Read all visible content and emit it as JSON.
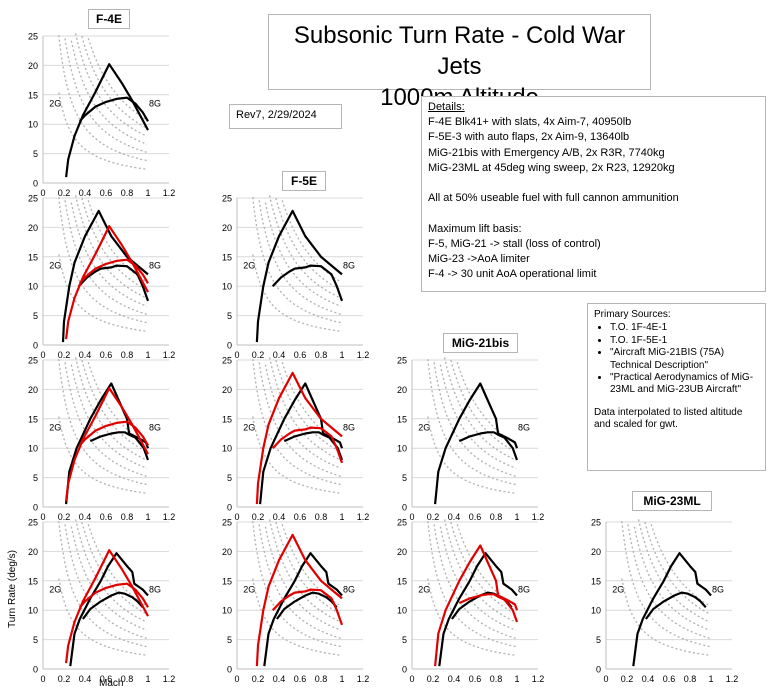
{
  "title_line1": "Subsonic Turn Rate - Cold War Jets",
  "title_line2": "1000m Altitude",
  "revision": "Rev7, 2/29/2024",
  "details": {
    "heading": "Details:",
    "lines": [
      "F-4E Blk41+ with slats, 4x Aim-7, 40950lb",
      "F-5E-3 with auto flaps, 2x Aim-9, 13640lb",
      "MiG-21bis with Emergency A/B, 2x R3R, 7740kg",
      "MiG-23ML at 45deg wing sweep, 2x R23, 12920kg",
      "",
      "All at 50% useable fuel with full cannon ammunition",
      "",
      "Maximum lift basis:",
      "F-5, MiG-21 -> stall (loss of control)",
      "MiG-23 ->AoA limiter",
      "F-4 -> 30 unit AoA operational limit"
    ]
  },
  "sources": {
    "heading": "Primary Sources:",
    "items": [
      "T.O. 1F-4E-1",
      "T.O. 1F-5E-1",
      "\"Aircraft MiG-21BIS (75A) Technical Description\"",
      "\"Practical Aerodynamics of MiG-23ML and MiG-23UB Aircraft\""
    ],
    "note": "Data interpolated to listed altitude and scaled for gwt."
  },
  "axis_labels": {
    "y": "Turn Rate (deg/s)",
    "x": "Mach"
  },
  "g_labels": {
    "low": "2G",
    "high": "8G"
  },
  "chart_titles": {
    "f4e": "F-4E",
    "f5e": "F-5E",
    "mig21": "MiG-21bis",
    "mig23": "MiG-23ML"
  },
  "colors": {
    "row_aircraft": "#000000",
    "col_aircraft": "#e00000",
    "g_lines": "#b0b0b0",
    "grid": "#d9d9d9"
  },
  "chart_data": {
    "type": "line",
    "xlabel": "Mach",
    "ylabel": "Turn Rate (deg/s)",
    "xlim": [
      0,
      1.2
    ],
    "ylim": [
      0,
      25
    ],
    "xticks": [
      "0",
      "0.2",
      "0.4",
      "0.6",
      "0.8",
      "1",
      "1.2"
    ],
    "yticks": [
      "0",
      "5",
      "10",
      "15",
      "20",
      "25"
    ],
    "aircraft": {
      "F-4E": {
        "max": [
          [
            0.22,
            1
          ],
          [
            0.24,
            4
          ],
          [
            0.3,
            8
          ],
          [
            0.38,
            11.5
          ],
          [
            0.5,
            15.5
          ],
          [
            0.63,
            20.2
          ],
          [
            0.75,
            17
          ],
          [
            0.85,
            14
          ],
          [
            1.0,
            9
          ]
        ],
        "sustained": [
          [
            0.35,
            10.5
          ],
          [
            0.4,
            11.5
          ],
          [
            0.5,
            13
          ],
          [
            0.6,
            13.8
          ],
          [
            0.7,
            14.3
          ],
          [
            0.8,
            14.5
          ],
          [
            0.88,
            13.5
          ],
          [
            0.95,
            12
          ],
          [
            1.0,
            10.5
          ]
        ]
      },
      "F-5E": {
        "max": [
          [
            0.19,
            0.5
          ],
          [
            0.2,
            4
          ],
          [
            0.25,
            10
          ],
          [
            0.3,
            14
          ],
          [
            0.4,
            18.5
          ],
          [
            0.53,
            22.8
          ],
          [
            0.65,
            18.5
          ],
          [
            0.8,
            15
          ],
          [
            0.9,
            13.5
          ],
          [
            1.0,
            12
          ]
        ],
        "sustained": [
          [
            0.34,
            10
          ],
          [
            0.42,
            11.5
          ],
          [
            0.5,
            12.5
          ],
          [
            0.55,
            13
          ],
          [
            0.65,
            13.2
          ],
          [
            0.7,
            13.5
          ],
          [
            0.8,
            13.4
          ],
          [
            0.9,
            12
          ],
          [
            0.95,
            10
          ],
          [
            1.0,
            7.5
          ]
        ]
      },
      "MiG-21bis": {
        "max": [
          [
            0.22,
            0.5
          ],
          [
            0.25,
            6
          ],
          [
            0.32,
            10
          ],
          [
            0.45,
            15
          ],
          [
            0.55,
            18.2
          ],
          [
            0.65,
            21
          ],
          [
            0.72,
            18.2
          ],
          [
            0.8,
            15
          ],
          [
            0.82,
            12.5
          ],
          [
            0.9,
            11.8
          ],
          [
            0.98,
            11
          ],
          [
            1.0,
            10
          ]
        ],
        "sustained": [
          [
            0.45,
            11.2
          ],
          [
            0.55,
            12
          ],
          [
            0.65,
            12.5
          ],
          [
            0.72,
            12.7
          ],
          [
            0.78,
            12.7
          ],
          [
            0.82,
            12.3
          ],
          [
            0.88,
            11.8
          ],
          [
            0.96,
            10
          ],
          [
            1.0,
            8
          ]
        ]
      },
      "MiG-23ML": {
        "max": [
          [
            0.26,
            0.5
          ],
          [
            0.3,
            6
          ],
          [
            0.35,
            8.5
          ],
          [
            0.45,
            12
          ],
          [
            0.55,
            15
          ],
          [
            0.62,
            17.5
          ],
          [
            0.7,
            19.7
          ],
          [
            0.8,
            17.5
          ],
          [
            0.85,
            16.5
          ],
          [
            0.87,
            14.5
          ],
          [
            0.95,
            13.5
          ],
          [
            1.0,
            12.5
          ]
        ],
        "sustained": [
          [
            0.38,
            8.5
          ],
          [
            0.45,
            10.2
          ],
          [
            0.55,
            11.5
          ],
          [
            0.65,
            12.5
          ],
          [
            0.72,
            13
          ],
          [
            0.78,
            12.8
          ],
          [
            0.85,
            12.2
          ],
          [
            0.9,
            11.5
          ],
          [
            0.95,
            10.5
          ]
        ]
      }
    },
    "grid_layout": {
      "rows": [
        "F-4E",
        "F-5E",
        "MiG-21bis",
        "MiG-23ML"
      ],
      "cols": [
        "F-4E",
        "F-5E",
        "MiG-21bis",
        "MiG-23ML"
      ],
      "note_cells": "row aircraft drawn black, column aircraft drawn red"
    }
  }
}
